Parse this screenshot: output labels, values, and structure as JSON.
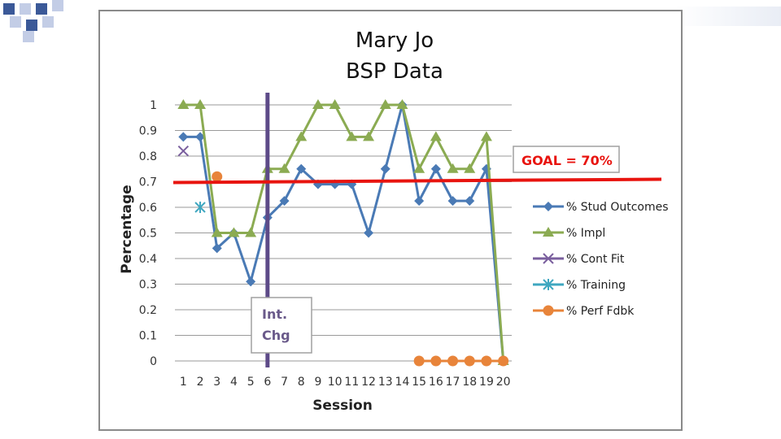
{
  "deco": {
    "accent_dark": "#3b5998",
    "accent_light": "#c3cde6"
  },
  "chart_data": {
    "type": "line",
    "title": "Mary Jo",
    "subtitle": "BSP Data",
    "xlabel": "Session",
    "ylabel": "Percentage",
    "categories": [
      "1",
      "2",
      "3",
      "4",
      "5",
      "6",
      "7",
      "8",
      "9",
      "10",
      "11",
      "12",
      "13",
      "14",
      "15",
      "16",
      "17",
      "18",
      "19",
      "20"
    ],
    "y_ticks": [
      "0",
      "0.1",
      "0.2",
      "0.3",
      "0.4",
      "0.5",
      "0.6",
      "0.7",
      "0.8",
      "0.9",
      "1"
    ],
    "ylim": [
      0,
      1
    ],
    "grid": true,
    "legend_position": "right",
    "series": [
      {
        "name": "% Stud Outcomes",
        "color": "#4a7ab5",
        "marker": "diamond",
        "values": [
          0.875,
          0.875,
          0.44,
          0.5,
          0.31,
          0.56,
          0.625,
          0.75,
          0.69,
          0.69,
          0.69,
          0.5,
          0.75,
          1.0,
          0.625,
          0.75,
          0.625,
          0.625,
          0.75,
          0
        ]
      },
      {
        "name": "% Impl",
        "color": "#8bab52",
        "marker": "triangle",
        "values": [
          1.0,
          1.0,
          0.5,
          0.5,
          0.5,
          0.75,
          0.75,
          0.875,
          1.0,
          1.0,
          0.875,
          0.875,
          1.0,
          1.0,
          0.75,
          0.875,
          0.75,
          0.75,
          0.875,
          0
        ]
      },
      {
        "name": "% Cont Fit",
        "color": "#7a5f9e",
        "marker": "x",
        "values": [
          0.82,
          null,
          null,
          null,
          null,
          null,
          null,
          null,
          null,
          null,
          null,
          null,
          null,
          null,
          null,
          null,
          null,
          null,
          null,
          null
        ]
      },
      {
        "name": "% Training",
        "color": "#3fa7c0",
        "marker": "star",
        "values": [
          null,
          0.6,
          null,
          null,
          null,
          null,
          null,
          null,
          null,
          null,
          null,
          null,
          null,
          null,
          null,
          null,
          null,
          null,
          null,
          null
        ]
      },
      {
        "name": "% Perf Fdbk",
        "color": "#e8843a",
        "marker": "circle",
        "values": [
          null,
          null,
          0.72,
          null,
          null,
          null,
          null,
          null,
          null,
          null,
          null,
          null,
          null,
          null,
          0,
          0,
          0,
          0,
          0,
          0
        ]
      }
    ],
    "annotations": {
      "goal_label": "GOAL = 70%",
      "goal_value": 0.7,
      "goal_color": "#e8140f",
      "phase_change_label_line1": "Int.",
      "phase_change_label_line2": "Chg",
      "phase_change_after_session": 5.5,
      "phase_change_color": "#5d4a88"
    }
  }
}
